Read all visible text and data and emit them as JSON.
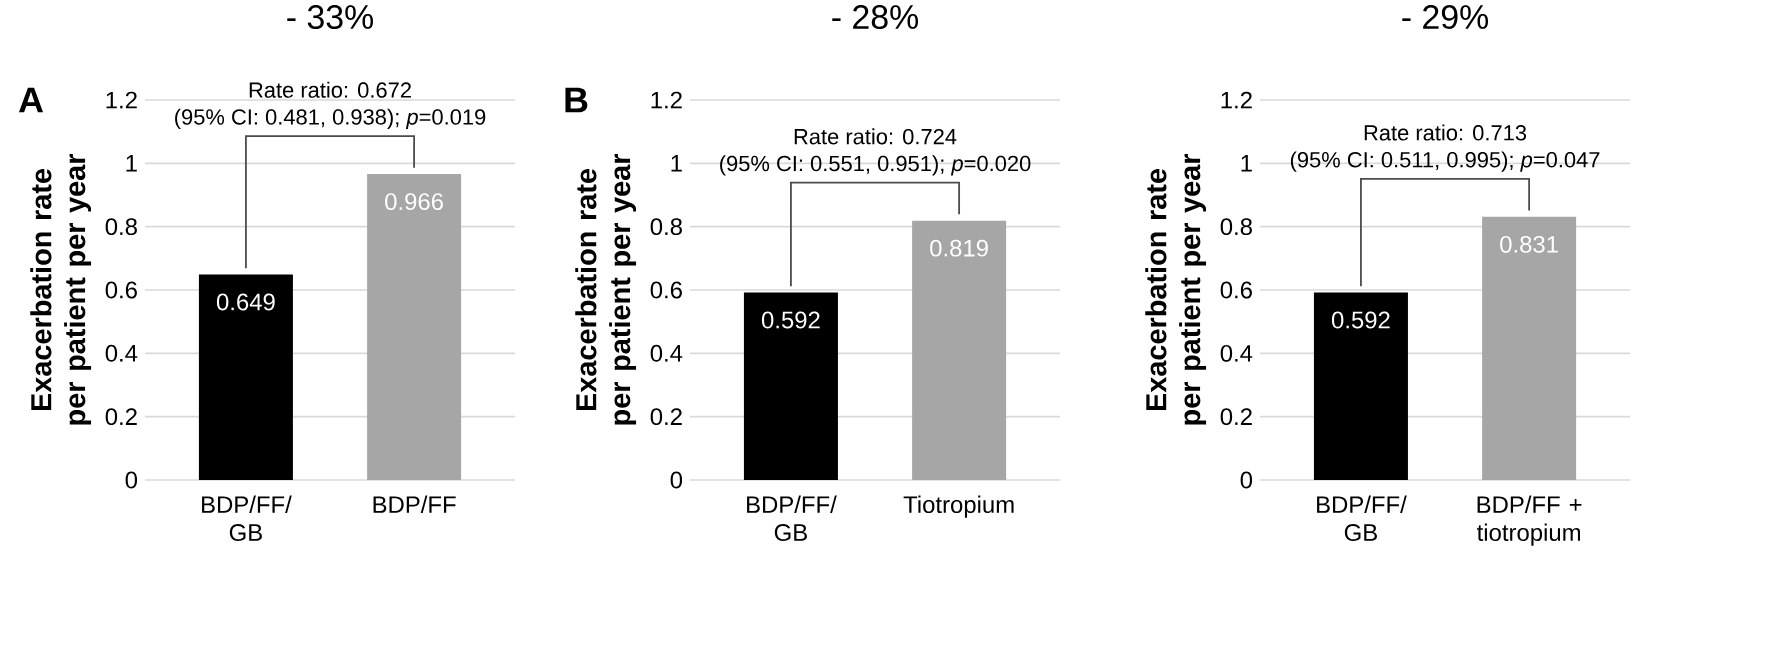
{
  "chart_data": [
    {
      "type": "bar",
      "title": "- 33%",
      "ylabel": "Exacerbation rate per patient per year",
      "categories": [
        "BDP/FF/ GB",
        "BDP/FF"
      ],
      "values": [
        0.649,
        0.966
      ],
      "colors": [
        "#000000",
        "#a6a6a6"
      ],
      "data_labels": true,
      "ylim": [
        0,
        1.2
      ],
      "yticks": [
        0,
        0.2,
        0.4,
        0.6,
        0.8,
        1,
        1.2
      ],
      "grid": "y",
      "annotations": [
        "A",
        "Rate ratio: 0.672",
        "(95% CI: 0.481, 0.938); *p*=0.019"
      ]
    },
    {
      "type": "bar",
      "title": "- 28%",
      "ylabel": "Exacerbation rate per patient per year",
      "categories": [
        "BDP/FF/ GB",
        "Tiotropium"
      ],
      "values": [
        0.592,
        0.819
      ],
      "colors": [
        "#000000",
        "#a6a6a6"
      ],
      "data_labels": true,
      "ylim": [
        0,
        1.2
      ],
      "yticks": [
        0,
        0.2,
        0.4,
        0.6,
        0.8,
        1,
        1.2
      ],
      "grid": "y",
      "annotations": [
        "B",
        "Rate ratio: 0.724",
        "(95% CI: 0.551, 0.951); *p*=0.020"
      ]
    },
    {
      "type": "bar",
      "title": "- 29%",
      "ylabel": "Exacerbation rate per patient per year",
      "categories": [
        "BDP/FF/ GB",
        "BDP/FF + tiotropium"
      ],
      "values": [
        0.592,
        0.831
      ],
      "colors": [
        "#000000",
        "#a6a6a6"
      ],
      "data_labels": true,
      "ylim": [
        0,
        1.2
      ],
      "yticks": [
        0,
        0.2,
        0.4,
        0.6,
        0.8,
        1,
        1.2
      ],
      "grid": "y",
      "annotations": [
        "Rate ratio: 0.713",
        "(95% CI: 0.511, 0.995); *p*=0.047"
      ]
    }
  ]
}
